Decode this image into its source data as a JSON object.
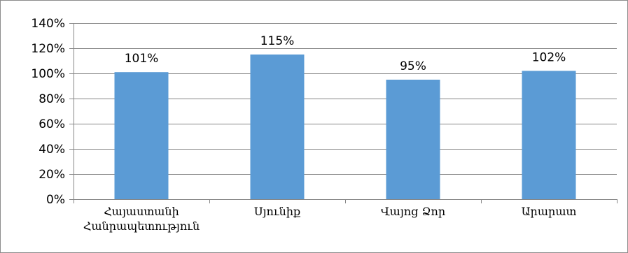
{
  "chart_data": {
    "type": "bar",
    "title": "",
    "xlabel": "",
    "ylabel": "",
    "categories": [
      [
        "Հայաստանի",
        "Հանրապետություն"
      ],
      [
        "Սյունիք"
      ],
      [
        "Վայոց Ձոր"
      ],
      [
        "Արարատ"
      ]
    ],
    "series": [
      {
        "values": [
          101,
          115,
          95,
          102
        ]
      }
    ],
    "data_labels": [
      "101%",
      "115%",
      "95%",
      "102%"
    ],
    "y_ticks": [
      0,
      20,
      40,
      60,
      80,
      100,
      120,
      140
    ],
    "y_tick_labels": [
      "0%",
      "20%",
      "40%",
      "60%",
      "80%",
      "100%",
      "120%",
      "140%"
    ],
    "ylim": [
      0,
      140
    ],
    "grid": true,
    "legend": "none",
    "colors": {
      "bar": "#5B9BD5",
      "grid": "#868686",
      "axis": "#868686"
    }
  }
}
